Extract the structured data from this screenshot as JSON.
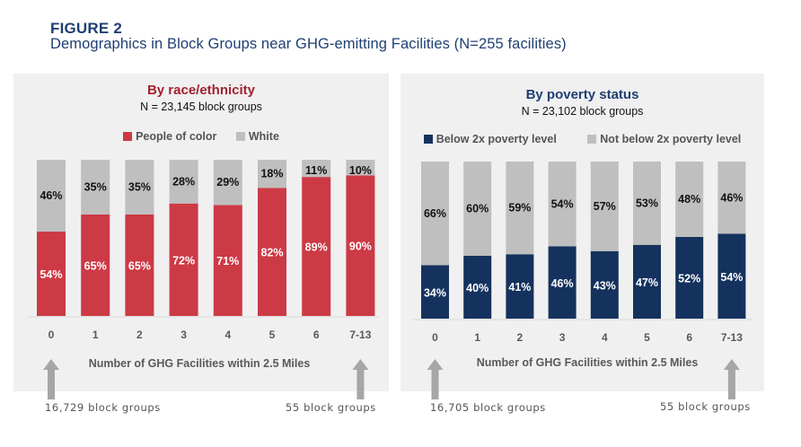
{
  "figure": {
    "label": "FIGURE 2",
    "title": "Demographics in Block Groups near GHG-emitting Facilities (N=255 facilities)"
  },
  "colors": {
    "title_blue": "#1f3f73",
    "race_accent": "#a3212f",
    "people_of_color": "#cc3a45",
    "white": "#bfbfbf",
    "below_poverty": "#15325e",
    "not_below_poverty": "#bfbfbf",
    "panel_bg": "#f0f0f0",
    "axis_text": "#595959",
    "arrow": "#a6a6a6"
  },
  "chart_data": [
    {
      "type": "bar",
      "stacked": true,
      "title": "By race/ethnicity",
      "subtitle": "N = 23,145 block groups",
      "categories": [
        "0",
        "1",
        "2",
        "3",
        "4",
        "5",
        "6",
        "7-13"
      ],
      "series": [
        {
          "name": "People of color",
          "values": [
            54,
            65,
            65,
            72,
            71,
            82,
            89,
            90
          ]
        },
        {
          "name": "White",
          "values": [
            46,
            35,
            35,
            28,
            29,
            18,
            11,
            10
          ]
        }
      ],
      "data_labels": [
        [
          "54%",
          "65%",
          "65%",
          "72%",
          "71%",
          "82%",
          "89%",
          "90%"
        ],
        [
          "46%",
          "35%",
          "35%",
          "28%",
          "29%",
          "18%",
          "11%",
          "10%"
        ]
      ],
      "xlabel": "Number of GHG Facilities within 2.5 Miles",
      "ylabel": "",
      "ylim": [
        0,
        100
      ],
      "legend": "top-center",
      "grid": false,
      "annotations": [
        {
          "category": "0",
          "text": "16,729 block groups",
          "marker": "up-arrow"
        },
        {
          "category": "7-13",
          "text": "55 block groups",
          "marker": "up-arrow"
        }
      ]
    },
    {
      "type": "bar",
      "stacked": true,
      "title": "By poverty status",
      "subtitle": "N = 23,102 block groups",
      "categories": [
        "0",
        "1",
        "2",
        "3",
        "4",
        "5",
        "6",
        "7-13"
      ],
      "series": [
        {
          "name": "Below 2x poverty level",
          "values": [
            34,
            40,
            41,
            46,
            43,
            47,
            52,
            54
          ]
        },
        {
          "name": "Not below 2x poverty level",
          "values": [
            66,
            60,
            59,
            54,
            57,
            53,
            48,
            46
          ]
        }
      ],
      "data_labels": [
        [
          "34%",
          "40%",
          "41%",
          "46%",
          "43%",
          "47%",
          "52%",
          "54%"
        ],
        [
          "66%",
          "60%",
          "59%",
          "54%",
          "57%",
          "53%",
          "48%",
          "46%"
        ]
      ],
      "xlabel": "Number of GHG Facilities within 2.5 Miles",
      "ylabel": "",
      "ylim": [
        0,
        100
      ],
      "legend": "top-center",
      "grid": false,
      "annotations": [
        {
          "category": "0",
          "text": "16,705 block groups",
          "marker": "up-arrow"
        },
        {
          "category": "7-13",
          "text": "55 block groups",
          "marker": "up-arrow"
        }
      ]
    }
  ]
}
